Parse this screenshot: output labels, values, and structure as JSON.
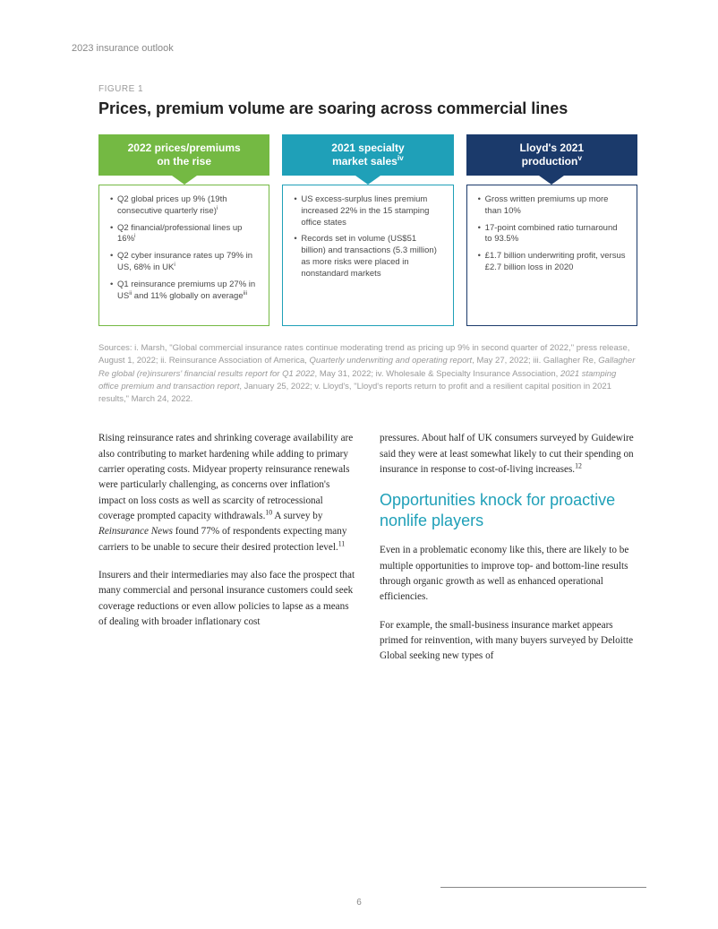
{
  "header_label": "2023 insurance outlook",
  "figure_label": "FIGURE 1",
  "figure_title": "Prices, premium volume are soaring across commercial lines",
  "cards": [
    {
      "header_html": "2022 prices/premiums<br>on the rise",
      "header_bg": "#74b943",
      "triangle_color": "#74b943",
      "border_color": "#74b943",
      "bullets": [
        "Q2 global prices up 9% (19th consecutive quarterly rise)<sup>i</sup>",
        "Q2 financial/professional lines up 16%<sup>i</sup>",
        "Q2 cyber insurance rates up 79% in US, 68% in UK<sup>i</sup>",
        "Q1 reinsurance premiums up 27% in US<sup>ii</sup> and 11% globally on average<sup>iii</sup>"
      ]
    },
    {
      "header_html": "2021 specialty<br>market sales<sup>iv</sup>",
      "header_bg": "#1fa0b8",
      "triangle_color": "#1fa0b8",
      "border_color": "#1fa0b8",
      "bullets": [
        "US excess-surplus lines premium increased 22% in the 15 stamping office states",
        "Records set in volume (US$51 billion) and transactions (5.3 million) as more risks were placed in nonstandard markets"
      ]
    },
    {
      "header_html": "Lloyd's 2021<br>production<sup>v</sup>",
      "header_bg": "#1b3a6b",
      "triangle_color": "#1b3a6b",
      "border_color": "#1b3a6b",
      "bullets": [
        "Gross written premiums up more than 10%",
        "17-point combined ratio turnaround to 93.5%",
        "£1.7 billion underwriting profit, versus £2.7 billion loss in 2020"
      ]
    }
  ],
  "sources_html": "Sources: i. Marsh, \"Global commercial insurance rates continue moderating trend as pricing up 9% in second quarter of 2022,\" press release, August 1, 2022; ii. Reinsurance Association of America, <em>Quarterly underwriting and operating report</em>, May 27, 2022; iii. Gallagher Re, <em>Gallagher Re global (re)insurers' financial results report for Q1 2022</em>, May 31, 2022; iv. Wholesale & Specialty Insurance Association, <em>2021 stamping office premium and transaction report</em>, January 25, 2022; v. Lloyd's, \"Lloyd's reports return to profit and a resilient capital position in 2021 results,\" March 24, 2022.",
  "left_col": [
    "Rising reinsurance rates and shrinking coverage availability are also contributing to market hardening while adding to primary carrier operating costs. Midyear property reinsurance renewals were particularly challenging, as concerns over inflation's impact on loss costs as well as scarcity of retrocessional coverage prompted capacity withdrawals.<sup>10</sup> A survey by <em>Reinsurance News</em> found 77% of respondents expecting many carriers to be unable to secure their desired protection level.<sup>11</sup>",
    "Insurers and their intermediaries may also face the prospect that many commercial and personal insurance customers could seek coverage reductions or even allow policies to lapse as a means of dealing with broader inflationary cost"
  ],
  "right_col_top": "pressures. About half of UK consumers surveyed by Guidewire said they were at least somewhat likely to cut their spending on insurance in response to cost-of-living increases.<sup>12</sup>",
  "section_heading": "Opportunities knock for proactive nonlife players",
  "right_col_paras": [
    "Even in a problematic economy like this, there are likely to be multiple opportunities to improve top- and bottom-line results through organic growth as well as enhanced operational efficiencies.",
    "For example, the small-business insurance market appears primed for reinvention, with many buyers surveyed by Deloitte Global seeking new types of"
  ],
  "page_number": "6"
}
